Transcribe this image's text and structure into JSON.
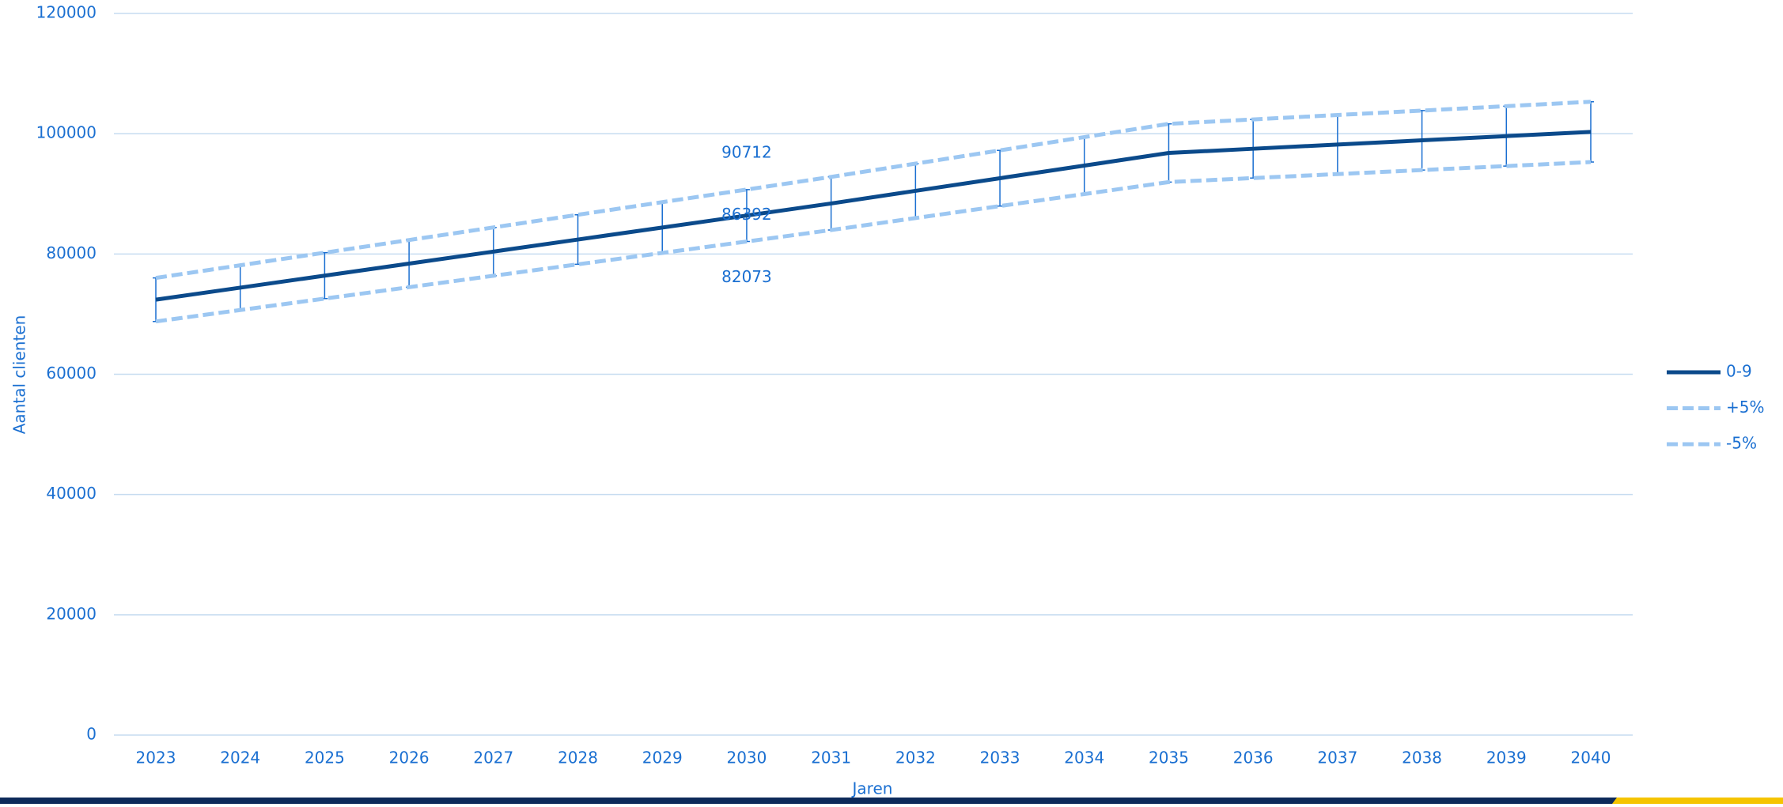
{
  "chart_data": {
    "type": "line",
    "x_label": "Jaren",
    "y_label": "Aantal clienten",
    "categories": [
      "2023",
      "2024",
      "2025",
      "2026",
      "2027",
      "2028",
      "2029",
      "2030",
      "2031",
      "2032",
      "2033",
      "2034",
      "2035",
      "2036",
      "2037",
      "2038",
      "2039",
      "2040"
    ],
    "series": [
      {
        "name": "0-9",
        "color": "#0b4a8b",
        "dashed": false,
        "values": [
          72400,
          74400,
          76400,
          78400,
          80400,
          82400,
          84400,
          86392,
          88400,
          90500,
          92600,
          94700,
          96800,
          97500,
          98200,
          98900,
          99600,
          100300
        ],
        "value_labels": [
          null,
          null,
          null,
          null,
          null,
          null,
          null,
          "86392",
          null,
          null,
          null,
          null,
          null,
          null,
          null,
          null,
          null,
          null
        ]
      },
      {
        "name": "+5%",
        "color": "#9cc7f2",
        "dashed": true,
        "values": [
          76020,
          78120,
          80220,
          82320,
          84420,
          86520,
          88620,
          90712,
          92820,
          95025,
          97230,
          99435,
          101640,
          102375,
          103110,
          103845,
          104580,
          105315
        ],
        "value_labels": [
          null,
          null,
          null,
          null,
          null,
          null,
          null,
          "90712",
          null,
          null,
          null,
          null,
          null,
          null,
          null,
          null,
          null,
          null
        ]
      },
      {
        "name": "-5%",
        "color": "#9cc7f2",
        "dashed": true,
        "values": [
          68780,
          70680,
          72580,
          74480,
          76380,
          78280,
          80180,
          82073,
          83980,
          85975,
          87970,
          89965,
          91960,
          92625,
          93290,
          93955,
          94620,
          95285
        ],
        "value_labels": [
          null,
          null,
          null,
          null,
          null,
          null,
          null,
          "82073",
          null,
          null,
          null,
          null,
          null,
          null,
          null,
          null,
          null,
          null
        ]
      }
    ],
    "error_bar_color": "#1a6fd1",
    "ylim": [
      0,
      120000
    ],
    "yticks": [
      0,
      20000,
      40000,
      60000,
      80000,
      100000,
      120000
    ],
    "grid": true,
    "legend": "right"
  }
}
